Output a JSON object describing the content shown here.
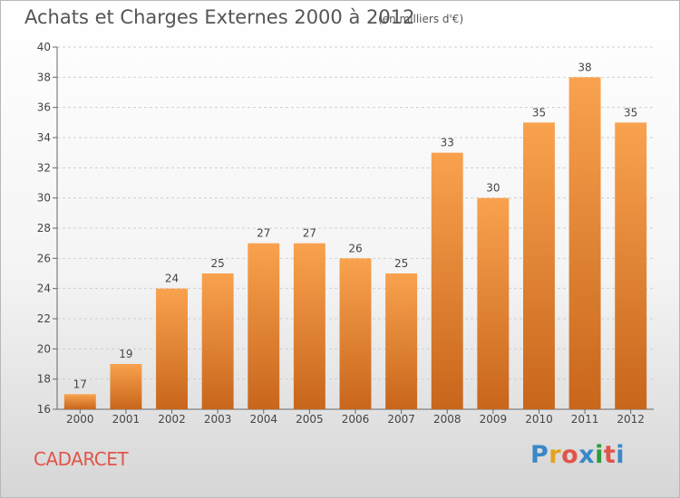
{
  "chart_data": {
    "type": "bar",
    "title": "Achats et Charges Externes 2000 à 2012",
    "subtitle": "(en milliers d'€)",
    "categories": [
      "2000",
      "2001",
      "2002",
      "2003",
      "2004",
      "2005",
      "2006",
      "2007",
      "2008",
      "2009",
      "2010",
      "2011",
      "2012"
    ],
    "values": [
      17,
      19,
      24,
      25,
      27,
      27,
      26,
      25,
      33,
      30,
      35,
      38,
      35
    ],
    "ylim": [
      16,
      40
    ],
    "yticks": [
      16,
      18,
      20,
      22,
      24,
      26,
      28,
      30,
      32,
      34,
      36,
      38,
      40
    ],
    "grid": true,
    "bar_color_top": "#f9a24e",
    "bar_color_bottom": "#c8661c"
  },
  "footer": {
    "place": "CADARCET",
    "logo": [
      "P",
      "r",
      "o",
      "x",
      "i",
      "t",
      "i"
    ],
    "logo_colors": [
      "#3a88c8",
      "#e6a21d",
      "#e0554a",
      "#3a88c8",
      "#2c9a3c",
      "#e0554a",
      "#3a88c8"
    ]
  }
}
